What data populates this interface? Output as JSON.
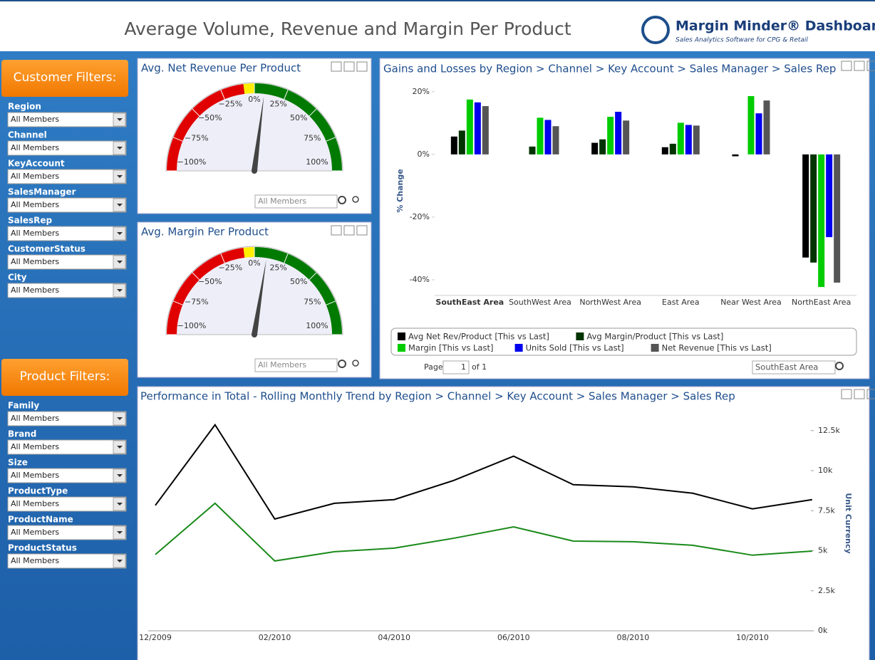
{
  "header": {
    "title": "Average Volume, Revenue and Margin Per Product",
    "brand": "Margin Minder® Dashboards",
    "tagline": "Sales Analytics Software for CPG & Retail"
  },
  "customer_filters": {
    "title": "Customer Filters:",
    "items": [
      {
        "label": "Region",
        "value": "All Members"
      },
      {
        "label": "Channel",
        "value": "All Members"
      },
      {
        "label": "KeyAccount",
        "value": "All Members"
      },
      {
        "label": "SalesManager",
        "value": "All Members"
      },
      {
        "label": "SalesRep",
        "value": "All Members"
      },
      {
        "label": "CustomerStatus",
        "value": "All Members"
      },
      {
        "label": "City",
        "value": "All Members"
      }
    ]
  },
  "product_filters": {
    "title": "Product Filters:",
    "items": [
      {
        "label": "Family",
        "value": "All Members"
      },
      {
        "label": "Brand",
        "value": "All Members"
      },
      {
        "label": "Size",
        "value": "All Members"
      },
      {
        "label": "ProductType",
        "value": "All Members"
      },
      {
        "label": "ProductName",
        "value": "All Members"
      },
      {
        "label": "ProductStatus",
        "value": "All Members"
      }
    ]
  },
  "chart_data": [
    {
      "type": "gauge",
      "title": "Avg. Net Revenue Per Product",
      "value": 8,
      "xlim": [
        -100,
        100
      ],
      "xticks": [
        {
          "value": -100,
          "label": "−100%"
        },
        {
          "value": -75,
          "label": "−75%"
        },
        {
          "value": -50,
          "label": "−50%"
        },
        {
          "value": -25,
          "label": "−25%"
        },
        {
          "value": 0,
          "label": "0%"
        },
        {
          "value": 25,
          "label": "25%"
        },
        {
          "value": 50,
          "label": "50%"
        },
        {
          "value": 75,
          "label": "75%"
        },
        {
          "value": 100,
          "label": "100%"
        }
      ],
      "filter_value": "All Members"
    },
    {
      "type": "gauge",
      "title": "Avg. Margin Per Product",
      "value": 10,
      "xlim": [
        -100,
        100
      ],
      "xticks": [
        {
          "value": -100,
          "label": "−100%"
        },
        {
          "value": -75,
          "label": "−75%"
        },
        {
          "value": -50,
          "label": "−50%"
        },
        {
          "value": -25,
          "label": "−25%"
        },
        {
          "value": 0,
          "label": "0%"
        },
        {
          "value": 25,
          "label": "25%"
        },
        {
          "value": 50,
          "label": "50%"
        },
        {
          "value": 75,
          "label": "75%"
        },
        {
          "value": 100,
          "label": "100%"
        }
      ],
      "filter_value": "All Members"
    },
    {
      "type": "bar",
      "title": "Gains and Losses by Region > Channel > Key Account > Sales Manager > Sales Rep",
      "y_label": "% Change",
      "categories": [
        "SouthEast Area",
        "SouthWest Area",
        "NorthWest Area",
        "East Area",
        "Near West Area",
        "NorthEast Area"
      ],
      "series": [
        {
          "name": "Avg Net Rev/Product [This vs Last]",
          "color": "#000000",
          "values": [
            5.7,
            0,
            3.7,
            2.3,
            -0.6,
            -32.9
          ]
        },
        {
          "name": "Avg Margin/Product [This vs Last]",
          "color": "#003300",
          "values": [
            7.6,
            2.5,
            4.8,
            3.4,
            0,
            -34.5
          ]
        },
        {
          "name": "Margin [This vs Last]",
          "color": "#00cc00",
          "values": [
            17.5,
            11.7,
            12,
            10.1,
            18.6,
            -42.3
          ]
        },
        {
          "name": "Units Sold [This vs Last]",
          "color": "#0000ee",
          "values": [
            16.6,
            11,
            13.6,
            9.4,
            13.1,
            -26.4
          ]
        },
        {
          "name": "Net Revenue [This vs Last]",
          "color": "#555555",
          "values": [
            15.4,
            9,
            10.8,
            9.2,
            17.2,
            -40.9
          ]
        }
      ],
      "ylim": [
        -45,
        22
      ],
      "yticks": [
        {
          "value": 20,
          "label": "20%"
        },
        {
          "value": 0,
          "label": "0%"
        },
        {
          "value": -20,
          "label": "-20%"
        },
        {
          "value": -40,
          "label": "-40%"
        }
      ],
      "pager": {
        "page_label": "Page",
        "page": 1,
        "of": "of 1",
        "selection": "SouthEast Area"
      }
    },
    {
      "type": "line",
      "title": "Performance in Total - Rolling Monthly Trend by Region > Channel > Key Account > Sales Manager > Sales Rep",
      "y_label": "Unit Currency",
      "categories": [
        "12/2009",
        null,
        "02/2010",
        null,
        "04/2010",
        null,
        "06/2010",
        null,
        "08/2010",
        null,
        "10/2010",
        null
      ],
      "series": [
        {
          "color": "#000000",
          "values": [
            7.83,
            12.86,
            6.98,
            7.96,
            8.19,
            9.39,
            10.9,
            9.12,
            8.99,
            8.59,
            7.61,
            8.19
          ]
        },
        {
          "color": "#1a8a1a",
          "values": [
            4.76,
            7.96,
            4.36,
            4.94,
            5.16,
            5.78,
            6.49,
            5.6,
            5.56,
            5.34,
            4.72,
            4.98
          ]
        }
      ],
      "ylim": [
        0,
        13.6
      ],
      "yticks": [
        {
          "value": 0,
          "label": "0k"
        },
        {
          "value": 2.5,
          "label": "2.5k"
        },
        {
          "value": 5,
          "label": "5k"
        },
        {
          "value": 7.5,
          "label": "7.5k"
        },
        {
          "value": 10,
          "label": "10k"
        },
        {
          "value": 12.5,
          "label": "12.5k"
        }
      ]
    }
  ]
}
